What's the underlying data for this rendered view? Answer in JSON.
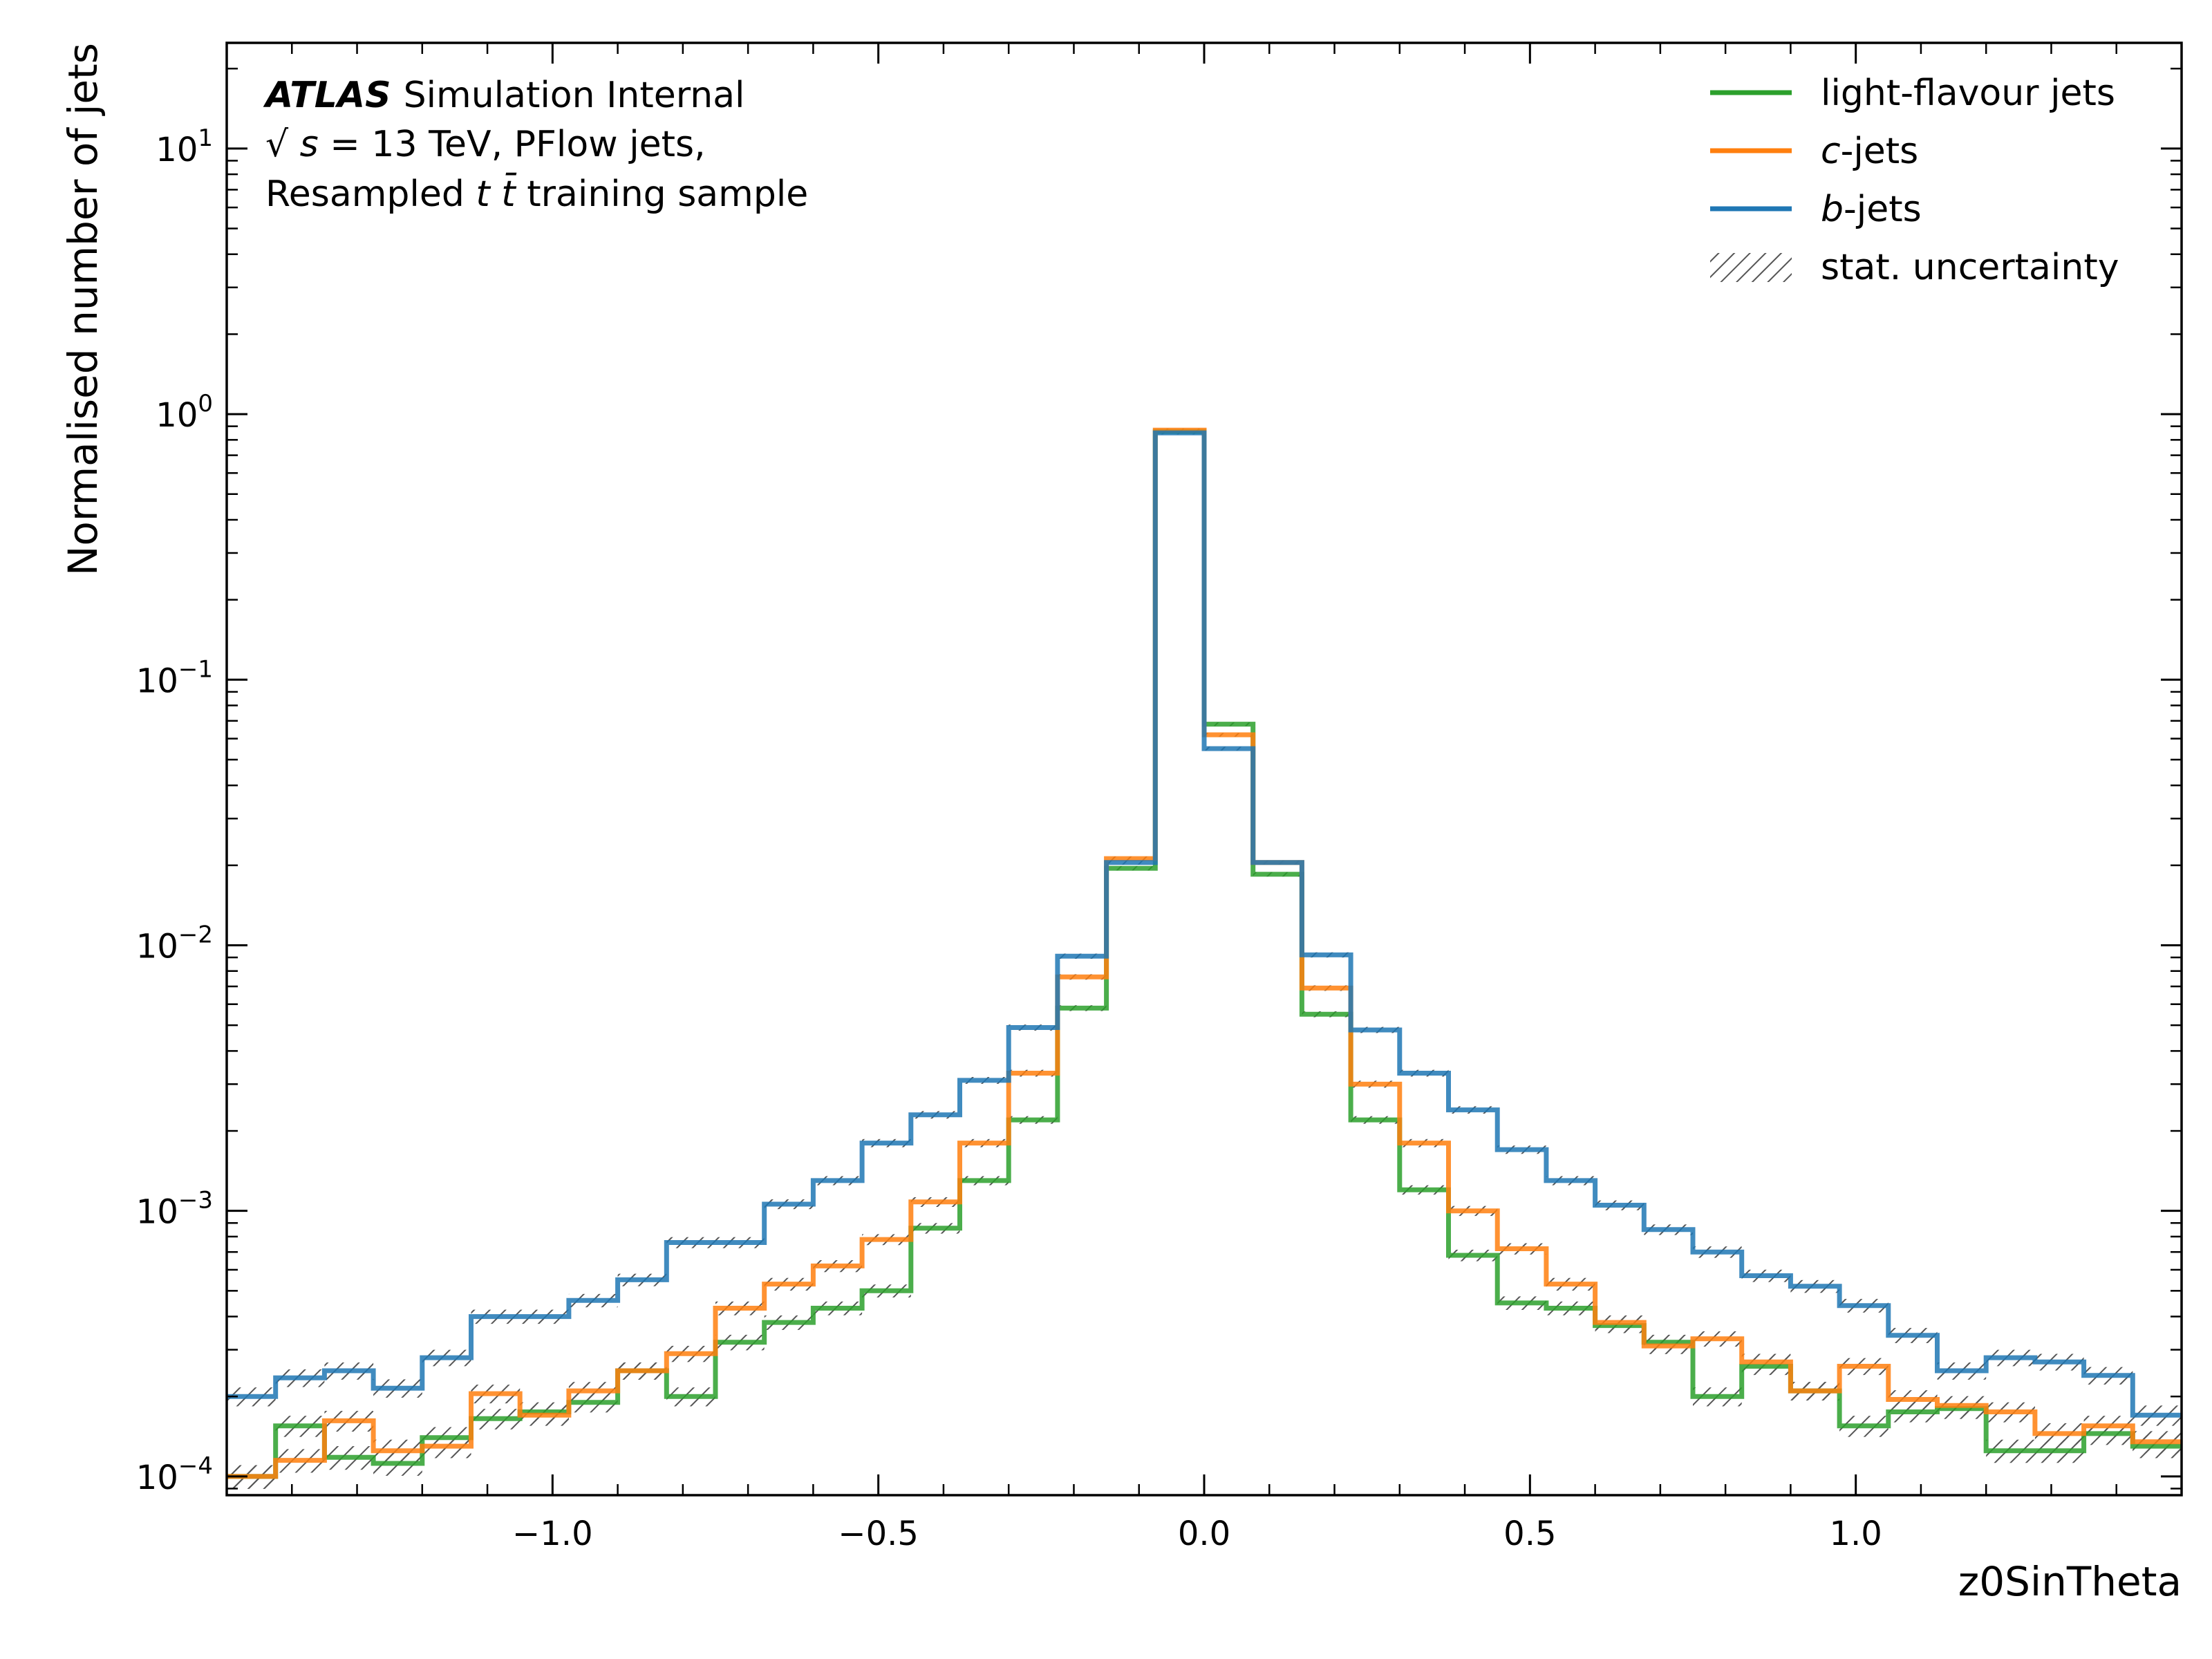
{
  "chart_data": {
    "type": "line",
    "subtype": "step-histogram",
    "xlabel": "z0SinTheta",
    "ylabel": "Normalised number of jets",
    "yscale": "log",
    "xlim": [
      -1.5,
      1.5
    ],
    "ylim": [
      8.5e-05,
      25
    ],
    "xticks": [
      -1.0,
      -0.5,
      0.0,
      0.5,
      1.0
    ],
    "xtick_labels": [
      "−1.0",
      "−0.5",
      "0.0",
      "0.5",
      "1.0"
    ],
    "ytick_exponents": [
      "−4",
      "−3",
      "−2",
      "−1",
      "0",
      "1"
    ],
    "ytick_base": "10",
    "annotation": {
      "atlas": "ATLAS",
      "status": "Simulation Internal",
      "sqrt": "√",
      "s_symbol": "s",
      "energy": " = 13 TeV, PFlow jets,",
      "sample_prefix": "Resampled ",
      "sample_tt": "t t̄",
      "sample_suffix": " training sample"
    },
    "legend": {
      "position": "top-right",
      "entries": [
        {
          "label": "light-flavour jets",
          "italic_part": "",
          "rest": "light-flavour jets",
          "color": "#2ca02c"
        },
        {
          "label": "c-jets",
          "italic_part": "c",
          "rest": "-jets",
          "color": "#ff7f0e"
        },
        {
          "label": "b-jets",
          "italic_part": "b",
          "rest": "-jets",
          "color": "#1f77b4"
        },
        {
          "label": "stat. uncertainty",
          "italic_part": "",
          "rest": "stat. uncertainty",
          "color": "#666666"
        }
      ]
    },
    "bin_edges": [
      -1.5,
      -1.425,
      -1.35,
      -1.275,
      -1.2,
      -1.125,
      -1.05,
      -0.975,
      -0.9,
      -0.825,
      -0.75,
      -0.675,
      -0.6,
      -0.525,
      -0.45,
      -0.375,
      -0.3,
      -0.225,
      -0.15,
      -0.075,
      0.0,
      0.075,
      0.15,
      0.225,
      0.3,
      0.375,
      0.45,
      0.525,
      0.6,
      0.675,
      0.75,
      0.825,
      0.9,
      0.975,
      1.05,
      1.125,
      1.2,
      1.275,
      1.35,
      1.425,
      1.5
    ],
    "series": [
      {
        "name": "light-flavour jets",
        "color": "#2ca02c",
        "values": [
          0.0001,
          0.000155,
          0.000118,
          0.000112,
          0.00014,
          0.000165,
          0.000175,
          0.00019,
          0.00025,
          0.0002,
          0.00032,
          0.00038,
          0.00043,
          0.0005,
          0.00086,
          0.0013,
          0.0022,
          0.0058,
          0.0195,
          0.86,
          0.068,
          0.0185,
          0.0055,
          0.0022,
          0.0012,
          0.00068,
          0.00045,
          0.00043,
          0.00037,
          0.00032,
          0.0002,
          0.00026,
          0.00021,
          0.000155,
          0.000175,
          0.00018,
          0.000125,
          0.000125,
          0.000145,
          0.00013
        ]
      },
      {
        "name": "c-jets",
        "color": "#ff7f0e",
        "values": [
          0.0001,
          0.000115,
          0.000162,
          0.000125,
          0.00013,
          0.000205,
          0.00017,
          0.00021,
          0.00025,
          0.00029,
          0.00043,
          0.00053,
          0.00062,
          0.00078,
          0.00108,
          0.0018,
          0.0033,
          0.0076,
          0.0212,
          0.87,
          0.062,
          0.0205,
          0.0069,
          0.003,
          0.0018,
          0.001,
          0.00072,
          0.00053,
          0.00038,
          0.00031,
          0.00033,
          0.00027,
          0.00021,
          0.00026,
          0.000195,
          0.000185,
          0.000175,
          0.000145,
          0.000155,
          0.000135
        ]
      },
      {
        "name": "b-jets",
        "color": "#1f77b4",
        "values": [
          0.0002,
          0.000235,
          0.00025,
          0.000215,
          0.00028,
          0.0004,
          0.0004,
          0.00046,
          0.00055,
          0.00076,
          0.00076,
          0.00106,
          0.0013,
          0.0018,
          0.0023,
          0.0031,
          0.0049,
          0.0091,
          0.0205,
          0.85,
          0.055,
          0.0205,
          0.0092,
          0.0048,
          0.0033,
          0.0024,
          0.0017,
          0.0013,
          0.00105,
          0.00085,
          0.0007,
          0.00057,
          0.00052,
          0.00044,
          0.00034,
          0.00025,
          0.00028,
          0.00027,
          0.00024,
          0.00017
        ]
      }
    ]
  }
}
